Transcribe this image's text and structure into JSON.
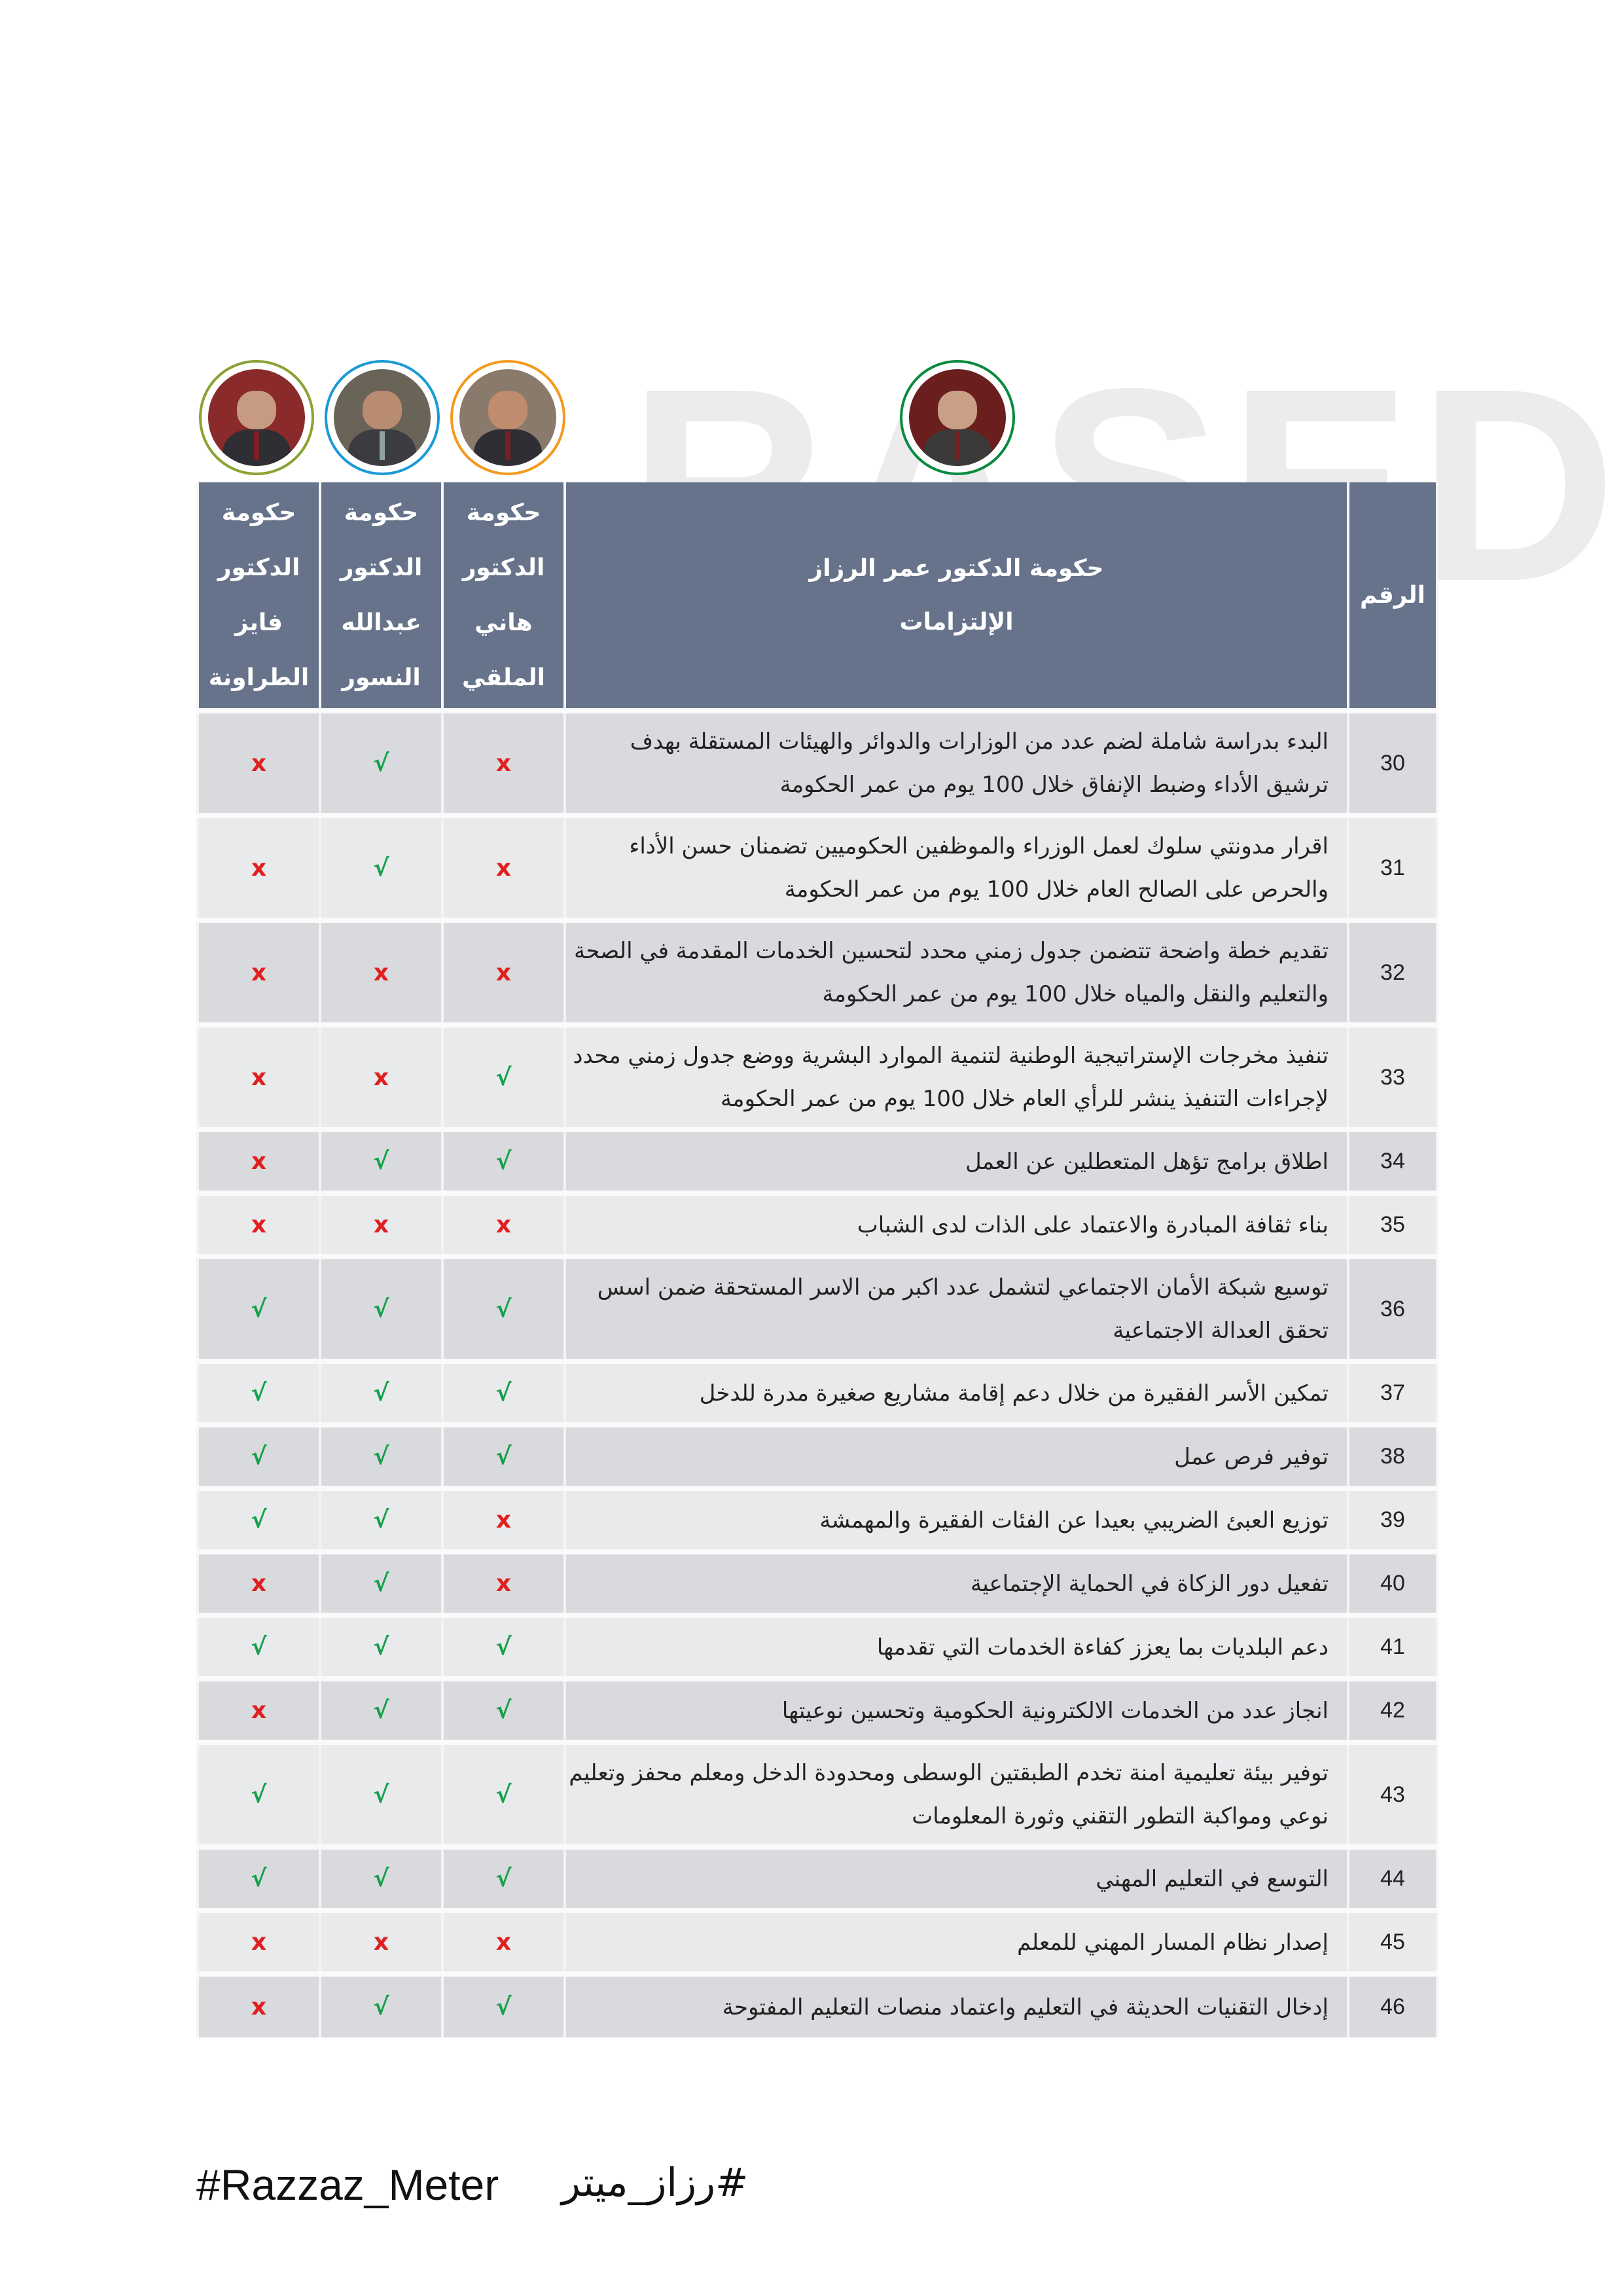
{
  "watermark": "RASED",
  "colors": {
    "header_bg": "#67738a",
    "check": "#14a04b",
    "cross": "#e02020",
    "razzaz_ring": "#0a8a3e",
    "mulki_ring": "#f39a1e",
    "nsour_ring": "#1a9ad6",
    "tarawneh_ring": "#8aa332"
  },
  "header": {
    "number": "الرقم",
    "main_line1": "حكومة الدكتور عمر الرزاز",
    "main_line2": "الإلتزامات",
    "governments": [
      {
        "lines": [
          "حكومة",
          "الدكتور",
          "هاني",
          "الملقي"
        ]
      },
      {
        "lines": [
          "حكومة",
          "الدكتور",
          "عبدالله",
          "النسور"
        ]
      },
      {
        "lines": [
          "حكومة",
          "الدكتور",
          "فايز",
          "الطراونة"
        ]
      }
    ]
  },
  "marks": {
    "yes": "√",
    "no": "x"
  },
  "rows": [
    {
      "n": "30",
      "text": "البدء بدراسة شاملة لضم عدد من الوزارات والدوائر والهيئات المستقلة بهدف ترشيق الأداء وضبط الإنفاق خلال 100 يوم من عمر الحكومة",
      "mulki": "no",
      "nsour": "yes",
      "tarawneh": "no"
    },
    {
      "n": "31",
      "text": "اقرار مدونتي سلوك لعمل الوزراء والموظفين الحكوميين تضمنان حسن الأداء والحرص على الصالح العام خلال 100 يوم من عمر الحكومة",
      "mulki": "no",
      "nsour": "yes",
      "tarawneh": "no"
    },
    {
      "n": "32",
      "text": "تقديم خطة واضحة تتضمن جدول زمني محدد لتحسين الخدمات المقدمة في الصحة والتعليم والنقل والمياه خلال 100 يوم من عمر الحكومة",
      "mulki": "no",
      "nsour": "no",
      "tarawneh": "no"
    },
    {
      "n": "33",
      "text": "تنفيذ مخرجات الإستراتيجية الوطنية لتنمية الموارد البشرية ووضع جدول زمني محدد لإجراءات التنفيذ ينشر للرأي العام خلال 100 يوم من عمر الحكومة",
      "mulki": "yes",
      "nsour": "no",
      "tarawneh": "no"
    },
    {
      "n": "34",
      "text": "اطلاق برامج تؤهل المتعطلين عن العمل",
      "mulki": "yes",
      "nsour": "yes",
      "tarawneh": "no"
    },
    {
      "n": "35",
      "text": "بناء ثقافة المبادرة والاعتماد على الذات لدى الشباب",
      "mulki": "no",
      "nsour": "no",
      "tarawneh": "no"
    },
    {
      "n": "36",
      "text": "توسيع شبكة الأمان الاجتماعي لتشمل عدد اكبر من الاسر المستحقة ضمن اسس تحقق العدالة الاجتماعية",
      "mulki": "yes",
      "nsour": "yes",
      "tarawneh": "yes"
    },
    {
      "n": "37",
      "text": "تمكين الأسر الفقيرة من خلال دعم إقامة مشاريع صغيرة مدرة للدخل",
      "mulki": "yes",
      "nsour": "yes",
      "tarawneh": "yes"
    },
    {
      "n": "38",
      "text": "توفير فرص عمل",
      "mulki": "yes",
      "nsour": "yes",
      "tarawneh": "yes"
    },
    {
      "n": "39",
      "text": "توزيع العبئ الضريبي بعيدا عن الفئات الفقيرة والمهمشة",
      "mulki": "no",
      "nsour": "yes",
      "tarawneh": "yes"
    },
    {
      "n": "40",
      "text": "تفعيل دور الزكاة في الحماية الإجتماعية",
      "mulki": "no",
      "nsour": "yes",
      "tarawneh": "no"
    },
    {
      "n": "41",
      "text": "دعم البلديات بما يعزز كفاءة الخدمات التي تقدمها",
      "mulki": "yes",
      "nsour": "yes",
      "tarawneh": "yes"
    },
    {
      "n": "42",
      "text": "انجاز عدد من الخدمات الالكترونية الحكومية وتحسين نوعيتها",
      "mulki": "yes",
      "nsour": "yes",
      "tarawneh": "no"
    },
    {
      "n": "43",
      "text": "توفير بيئة تعليمية امنة تخدم الطبقتين الوسطى ومحدودة الدخل ومعلم محفز وتعليم نوعي ومواكبة التطور التقني وثورة المعلومات",
      "mulki": "yes",
      "nsour": "yes",
      "tarawneh": "yes"
    },
    {
      "n": "44",
      "text": "التوسع في التعليم المهني",
      "mulki": "yes",
      "nsour": "yes",
      "tarawneh": "yes"
    },
    {
      "n": "45",
      "text": "إصدار نظام المسار المهني للمعلم",
      "mulki": "no",
      "nsour": "no",
      "tarawneh": "no"
    },
    {
      "n": "46",
      "text": "إدخال التقنيات الحديثة في التعليم واعتماد منصات التعليم المفتوحة",
      "mulki": "yes",
      "nsour": "yes",
      "tarawneh": "no"
    }
  ],
  "footer": {
    "hashtag_en": "#Razzaz_Meter",
    "hashtag_ar": "#رزاز_ميتر"
  }
}
